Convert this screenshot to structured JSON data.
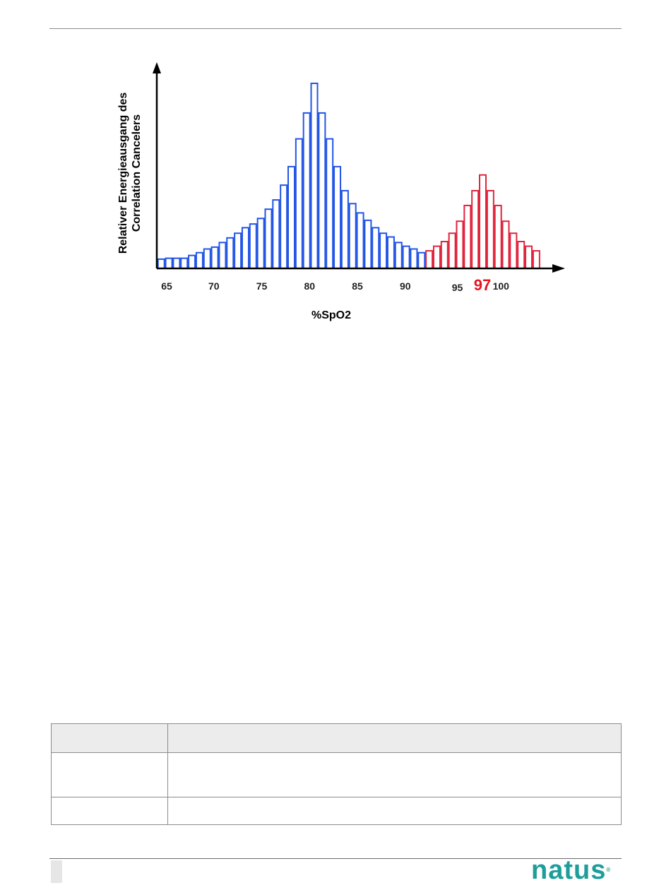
{
  "chart_data": {
    "type": "bar",
    "xlabel": "%SpO2",
    "ylabel_lines": [
      "Relativer Energieausgang des",
      "Correlation Cancelers"
    ],
    "x_ticks": [
      "65",
      "70",
      "75",
      "80",
      "85",
      "90",
      "95",
      "100"
    ],
    "highlight_tick": "97",
    "xlim": [
      64,
      105
    ],
    "ylim": [
      0,
      1
    ],
    "series": [
      {
        "color": "#2255e6",
        "x": [
          64.5,
          65.3,
          66.1,
          66.9,
          67.7,
          68.5,
          69.3,
          70.1,
          70.9,
          71.7,
          72.5,
          73.3,
          74.1,
          74.9,
          75.7,
          76.5,
          77.3,
          78.1,
          78.9,
          79.7,
          80.5,
          81.3,
          82.1,
          82.9,
          83.7,
          84.5,
          85.3,
          86.1,
          86.9,
          87.7,
          88.5,
          89.3,
          90.1,
          90.9,
          91.7
        ],
        "values": [
          0.05,
          0.055,
          0.055,
          0.055,
          0.07,
          0.085,
          0.105,
          0.115,
          0.14,
          0.165,
          0.19,
          0.22,
          0.24,
          0.27,
          0.32,
          0.37,
          0.45,
          0.55,
          0.7,
          0.84,
          1.0,
          0.84,
          0.7,
          0.55,
          0.42,
          0.35,
          0.3,
          0.26,
          0.22,
          0.19,
          0.17,
          0.14,
          0.12,
          0.105,
          0.085
        ]
      },
      {
        "color": "#e0243c",
        "x": [
          92.5,
          93.3,
          94.1,
          94.9,
          95.7,
          96.5,
          97.3,
          98.1,
          98.9,
          99.7,
          100.5,
          101.3,
          102.1,
          102.9,
          103.7
        ],
        "values": [
          0.095,
          0.12,
          0.145,
          0.19,
          0.255,
          0.34,
          0.42,
          0.505,
          0.42,
          0.34,
          0.255,
          0.19,
          0.145,
          0.12,
          0.095
        ]
      }
    ]
  },
  "brand": {
    "logo_text": "natus",
    "registered_mark": "®",
    "color": "#1d9e9a"
  }
}
